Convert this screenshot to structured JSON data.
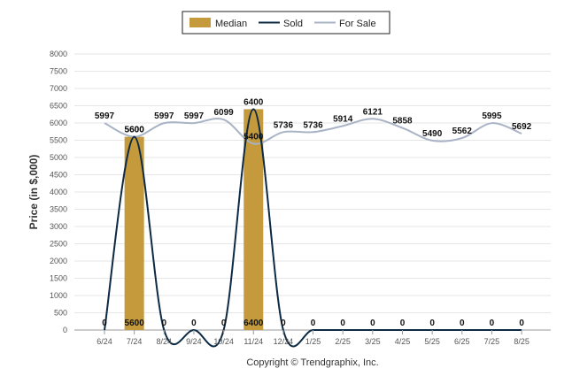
{
  "chart_data": {
    "type": "bar",
    "ylabel": "Price (in $,000)",
    "ylim": [
      0,
      8000
    ],
    "yticks": [
      0,
      500,
      1000,
      1500,
      2000,
      2500,
      3000,
      3500,
      4000,
      4500,
      5000,
      5500,
      6000,
      6500,
      7000,
      7500,
      8000
    ],
    "categories": [
      "6/24",
      "7/24",
      "8/24",
      "9/24",
      "10/24",
      "11/24",
      "12/24",
      "1/25",
      "2/25",
      "3/25",
      "4/25",
      "5/25",
      "6/25",
      "7/25",
      "8/25"
    ],
    "series": [
      {
        "name": "Median",
        "type": "bar",
        "color": "#c49a3c",
        "values": [
          0,
          5600,
          0,
          0,
          0,
          6400,
          0,
          0,
          0,
          0,
          0,
          0,
          0,
          0,
          0
        ]
      },
      {
        "name": "Sold",
        "type": "line",
        "color": "#0d2a45",
        "values": [
          0,
          5600,
          0,
          0,
          0,
          6400,
          0,
          0,
          0,
          0,
          0,
          0,
          0,
          0,
          0
        ]
      },
      {
        "name": "For Sale",
        "type": "line",
        "color": "#a9b3c6",
        "values": [
          5997,
          5600,
          5997,
          5997,
          6099,
          5400,
          5736,
          5736,
          5914,
          6121,
          5858,
          5490,
          5562,
          5995,
          5692
        ]
      }
    ],
    "grid": true,
    "legend": "top-center",
    "copyright": "Copyright © Trendgraphix, Inc."
  }
}
